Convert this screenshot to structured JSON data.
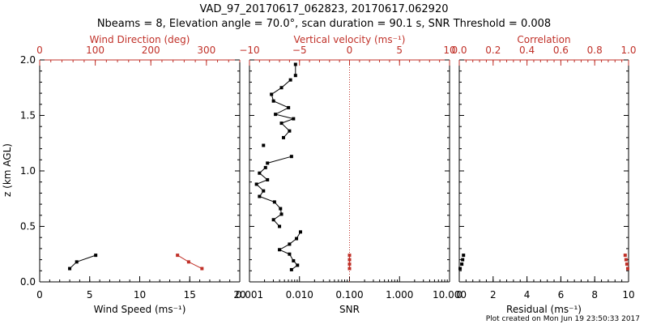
{
  "title": "VAD_97_20170617_062823, 20170617.062920",
  "subtitle": "Nbeams = 8, Elevation angle = 70.0°, scan duration = 90.1 s, SNR Threshold = 0.008",
  "footer": "Plot created on Mon Jun 19 23:50:33 2017",
  "colors": {
    "black": "#000000",
    "red": "#c03028"
  },
  "chart_data": [
    {
      "type": "line",
      "panel": "wind",
      "ylabel": "z (km AGL)",
      "ylim": [
        0,
        2.0
      ],
      "yticks": [
        "0.0",
        "0.5",
        "1.0",
        "1.5",
        "2.0"
      ],
      "xlabel": "Wind Speed (ms⁻¹)",
      "xlim": [
        0,
        20
      ],
      "xticks": [
        "0",
        "5",
        "10",
        "15",
        "20"
      ],
      "x2label": "Wind Direction (deg)",
      "x2lim": [
        0,
        360
      ],
      "x2ticks": [
        "0",
        "100",
        "200",
        "300"
      ],
      "series": [
        {
          "name": "Wind Speed",
          "axis": "bottom",
          "color": "#000000",
          "x": [
            3.0,
            3.7,
            5.6
          ],
          "y": [
            0.12,
            0.18,
            0.24
          ]
        },
        {
          "name": "Wind Direction",
          "axis": "top",
          "color": "#c03028",
          "x": [
            248,
            268,
            292
          ],
          "y": [
            0.24,
            0.18,
            0.12
          ]
        }
      ]
    },
    {
      "type": "line",
      "panel": "vertical-velocity",
      "ylim": [
        0,
        2.0
      ],
      "xlabel": "SNR",
      "xscale": "log",
      "xlim": [
        0.001,
        10
      ],
      "xticks": [
        "0.001",
        "0.010",
        "0.100",
        "1.000",
        "10.000"
      ],
      "x2label": "Vertical velocity (ms⁻¹)",
      "x2lim": [
        -10,
        10
      ],
      "x2ticks": [
        "−10",
        "−5",
        "0",
        "5",
        "10"
      ],
      "reference_line": {
        "axis": "top",
        "x": 0,
        "style": "dotted"
      },
      "series": [
        {
          "name": "Vertical velocity",
          "axis": "top",
          "color": "#000000",
          "segments": [
            {
              "x": [
                -5.8,
                -5.2,
                -5.6,
                -6.0,
                -7.0,
                -6.0,
                -5.3,
                -4.9
              ],
              "y": [
                0.11,
                0.15,
                0.19,
                0.25,
                0.29,
                0.34,
                0.39,
                0.45
              ]
            },
            {
              "x": [
                -7.0,
                -7.6,
                -6.8,
                -6.9,
                -7.5,
                -9.0,
                -8.6,
                -9.3,
                -8.2,
                -9.0,
                -8.4
              ],
              "y": [
                0.5,
                0.56,
                0.61,
                0.66,
                0.72,
                0.77,
                0.82,
                0.88,
                0.92,
                0.98,
                1.03
              ]
            },
            {
              "x": [
                -8.2,
                -5.8
              ],
              "y": [
                1.07,
                1.13
              ]
            },
            {
              "x": [
                -8.6
              ],
              "y": [
                1.23
              ]
            },
            {
              "x": [
                -6.6,
                -6.0,
                -6.8,
                -5.6,
                -7.4,
                -6.1,
                -7.6,
                -7.8,
                -6.8,
                -5.9
              ],
              "y": [
                1.3,
                1.36,
                1.43,
                1.47,
                1.51,
                1.57,
                1.63,
                1.69,
                1.75,
                1.82
              ]
            },
            {
              "x": [
                -5.4,
                -5.4
              ],
              "y": [
                1.86,
                1.96
              ]
            }
          ]
        },
        {
          "name": "SNR",
          "axis": "bottom",
          "color": "#c03028",
          "x": [
            0.1,
            0.1,
            0.1,
            0.1
          ],
          "y": [
            0.12,
            0.16,
            0.2,
            0.24
          ]
        }
      ]
    },
    {
      "type": "scatter",
      "panel": "correlation",
      "ylim": [
        0,
        2.0
      ],
      "xlabel": "Residual (ms⁻¹)",
      "xlim": [
        0,
        10
      ],
      "xticks": [
        "0",
        "2",
        "4",
        "6",
        "8",
        "10"
      ],
      "x2label": "Correlation",
      "x2lim": [
        0,
        1.0
      ],
      "x2ticks": [
        "0.0",
        "0.2",
        "0.4",
        "0.6",
        "0.8",
        "1.0"
      ],
      "series": [
        {
          "name": "Residual",
          "axis": "bottom",
          "color": "#000000",
          "x": [
            0.05,
            0.15,
            0.2,
            0.25
          ],
          "y": [
            0.12,
            0.16,
            0.2,
            0.24
          ]
        },
        {
          "name": "Correlation",
          "axis": "top",
          "color": "#c03028",
          "x": [
            0.995,
            0.99,
            0.985,
            0.98
          ],
          "y": [
            0.12,
            0.16,
            0.2,
            0.24
          ]
        }
      ]
    }
  ]
}
